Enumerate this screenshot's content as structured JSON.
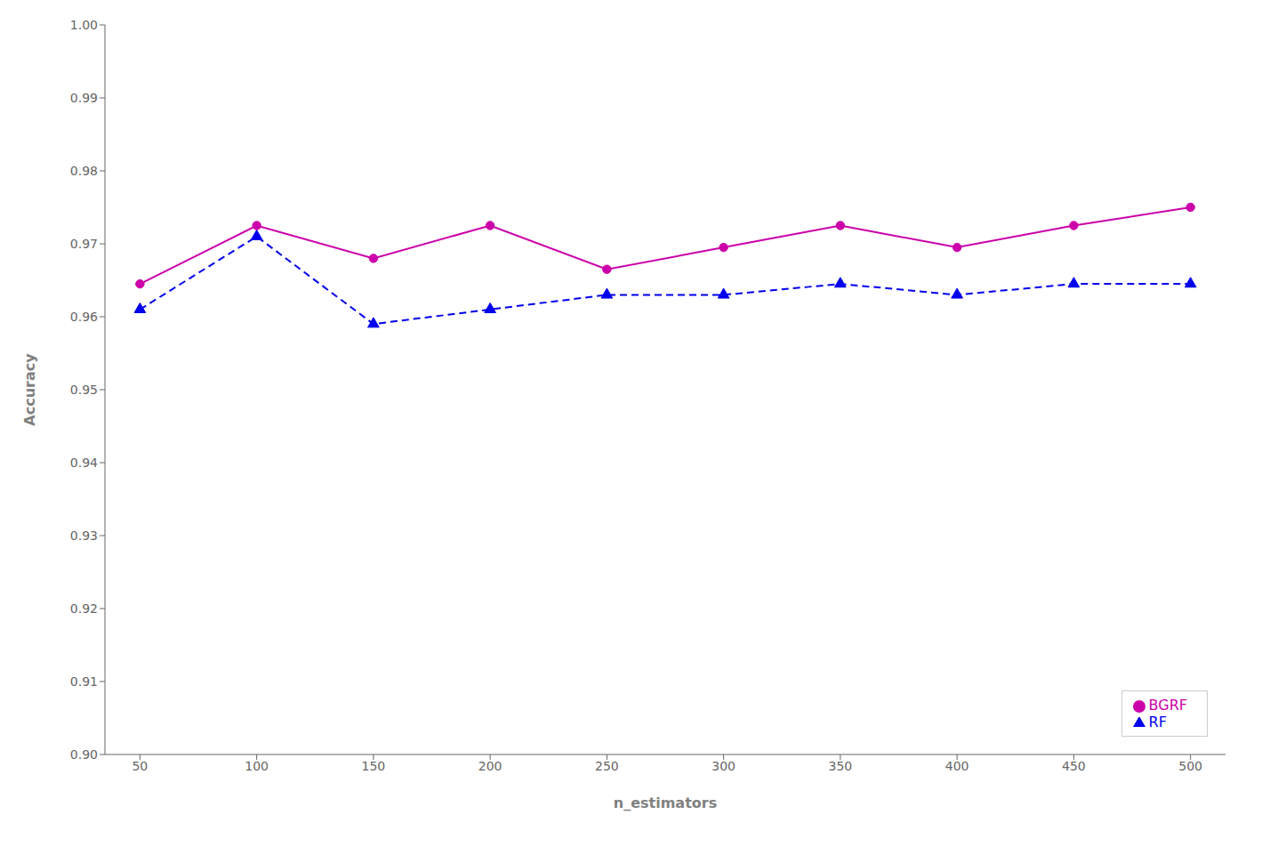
{
  "chart_data": {
    "type": "line",
    "x": [
      50,
      100,
      150,
      200,
      250,
      300,
      350,
      400,
      450,
      500
    ],
    "xlabel": "n_estimators",
    "ylabel": "Accuracy",
    "series": [
      {
        "name": "BGRF",
        "color": "#cc00aa",
        "values": [
          0.9645,
          0.9725,
          0.968,
          0.9725,
          0.9665,
          0.9695,
          0.9725,
          0.9695,
          0.9725,
          0.975
        ],
        "marker": "circle",
        "line_style": "solid"
      },
      {
        "name": "RF",
        "color": "#0000ee",
        "values": [
          0.961,
          0.971,
          0.959,
          0.961,
          0.963,
          0.963,
          0.9645,
          0.963,
          0.9645,
          0.9645
        ],
        "marker": "triangle",
        "line_style": "dashed"
      }
    ],
    "xlim": [
      35,
      515
    ],
    "xticks": [
      50,
      100,
      150,
      200,
      250,
      300,
      350,
      400,
      450,
      500
    ],
    "ylim": [
      0.9,
      1.0
    ],
    "yticks": [
      {
        "value": 0.9,
        "label": "0.90"
      },
      0.91,
      0.92,
      0.93,
      0.94,
      0.95,
      0.96,
      0.97,
      0.98,
      0.99,
      {
        "value": 1.0,
        "label": "1.00"
      }
    ],
    "grid": false,
    "legend": "lower right"
  }
}
